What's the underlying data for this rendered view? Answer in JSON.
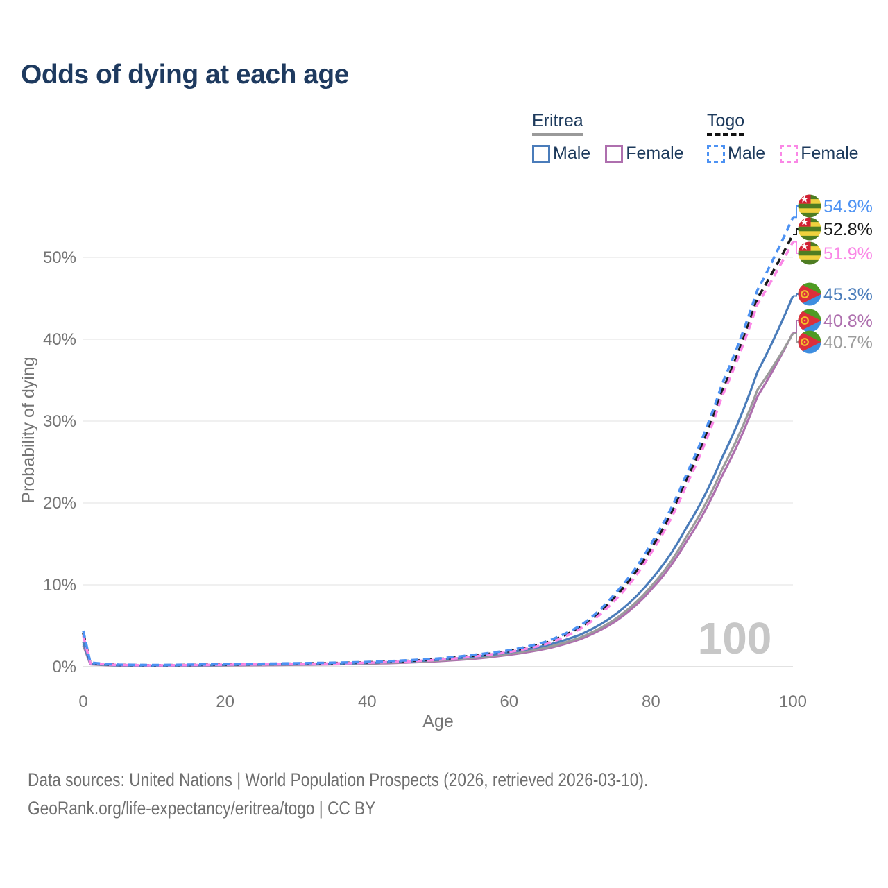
{
  "title": "Odds of dying at each age",
  "legend": {
    "groups": [
      {
        "name": "Eritrea",
        "line_style": "solid",
        "underline_color": "#9a9a9a",
        "items": [
          {
            "label": "Male",
            "color": "#4a7cba"
          },
          {
            "label": "Female",
            "color": "#ae6fae"
          }
        ]
      },
      {
        "name": "Togo",
        "line_style": "dashed",
        "underline_color": "#111111",
        "items": [
          {
            "label": "Male",
            "color": "#4d92f3"
          },
          {
            "label": "Female",
            "color": "#fa87e6"
          }
        ]
      }
    ]
  },
  "axes": {
    "x": {
      "title": "Age",
      "ticks": [
        "0",
        "20",
        "40",
        "60",
        "80",
        "100"
      ],
      "range": [
        0,
        100
      ]
    },
    "y": {
      "title": "Probability of dying",
      "ticks": [
        "0%",
        "10%",
        "20%",
        "30%",
        "40%",
        "50%"
      ],
      "range_pct": [
        0,
        57
      ],
      "grid": true
    }
  },
  "hover_age_label": "100",
  "end_labels": [
    {
      "text": "54.9%",
      "series": "togo_male",
      "flag": "togo",
      "color": "#4d92f3"
    },
    {
      "text": "52.8%",
      "series": "togo_both",
      "flag": "togo",
      "color": "#1a1a1a"
    },
    {
      "text": "51.9%",
      "series": "togo_female",
      "flag": "togo",
      "color": "#fa87e6"
    },
    {
      "text": "45.3%",
      "series": "eritrea_male",
      "flag": "eritrea",
      "color": "#4a7cba"
    },
    {
      "text": "40.8%",
      "series": "eritrea_female",
      "flag": "eritrea",
      "color": "#ae6fae"
    },
    {
      "text": "40.7%",
      "series": "eritrea_both",
      "flag": "eritrea",
      "color": "#9b9b9b"
    }
  ],
  "chart_data": {
    "type": "line",
    "title": "Odds of dying at each age",
    "xlabel": "Age",
    "ylabel": "Probability of dying",
    "unit": "%",
    "xlim": [
      0,
      100
    ],
    "ylim_pct": [
      0,
      57
    ],
    "legend_position": "top-right",
    "grid": "horizontal",
    "x": [
      0,
      1,
      5,
      10,
      15,
      20,
      25,
      30,
      35,
      40,
      45,
      50,
      55,
      60,
      65,
      70,
      75,
      80,
      85,
      90,
      95,
      100
    ],
    "series": [
      {
        "id": "togo_male",
        "name": "Togo Male",
        "country": "Togo",
        "sex": "Male",
        "style": "dashed",
        "color": "#4d92f3",
        "values": [
          4.4,
          0.5,
          0.25,
          0.2,
          0.25,
          0.32,
          0.36,
          0.42,
          0.48,
          0.58,
          0.75,
          1.0,
          1.45,
          2.0,
          3.0,
          5.0,
          9.0,
          15.0,
          23.5,
          34.5,
          46.0,
          54.9
        ],
        "end_value_pct": 54.9
      },
      {
        "id": "togo_both",
        "name": "Togo Both sexes",
        "country": "Togo",
        "sex": "Both",
        "style": "dashed",
        "color": "#1a1a1a",
        "values": [
          4.1,
          0.46,
          0.23,
          0.18,
          0.22,
          0.28,
          0.32,
          0.38,
          0.44,
          0.53,
          0.68,
          0.92,
          1.35,
          1.9,
          2.85,
          4.8,
          8.6,
          14.4,
          22.8,
          33.6,
          45.0,
          52.8
        ],
        "end_value_pct": 52.8
      },
      {
        "id": "togo_female",
        "name": "Togo Female",
        "country": "Togo",
        "sex": "Female",
        "style": "dashed",
        "color": "#fa87e6",
        "values": [
          3.8,
          0.42,
          0.21,
          0.17,
          0.2,
          0.25,
          0.28,
          0.33,
          0.39,
          0.48,
          0.62,
          0.84,
          1.25,
          1.8,
          2.7,
          4.6,
          8.2,
          13.9,
          22.2,
          33.0,
          44.3,
          51.9
        ],
        "end_value_pct": 51.9
      },
      {
        "id": "eritrea_male",
        "name": "Eritrea Male",
        "country": "Eritrea",
        "sex": "Male",
        "style": "solid",
        "color": "#4a7cba",
        "values": [
          3.0,
          0.36,
          0.16,
          0.13,
          0.16,
          0.21,
          0.26,
          0.31,
          0.36,
          0.46,
          0.6,
          0.84,
          1.2,
          1.75,
          2.55,
          3.9,
          6.4,
          10.6,
          17.0,
          25.5,
          36.0,
          45.3
        ],
        "end_value_pct": 45.3
      },
      {
        "id": "eritrea_both",
        "name": "Eritrea Both sexes",
        "country": "Eritrea",
        "sex": "Both",
        "style": "solid",
        "color": "#9b9b9b",
        "values": [
          2.8,
          0.33,
          0.15,
          0.12,
          0.14,
          0.18,
          0.22,
          0.27,
          0.32,
          0.41,
          0.54,
          0.75,
          1.08,
          1.58,
          2.3,
          3.55,
          5.85,
          9.8,
          15.9,
          24.1,
          33.8,
          40.7
        ],
        "end_value_pct": 40.7
      },
      {
        "id": "eritrea_female",
        "name": "Eritrea Female",
        "country": "Eritrea",
        "sex": "Female",
        "style": "solid",
        "color": "#ae6fae",
        "values": [
          2.6,
          0.3,
          0.14,
          0.11,
          0.13,
          0.16,
          0.19,
          0.23,
          0.28,
          0.36,
          0.48,
          0.67,
          0.97,
          1.45,
          2.15,
          3.35,
          5.55,
          9.4,
          15.3,
          23.3,
          33.0,
          40.8
        ],
        "end_value_pct": 40.8
      }
    ]
  },
  "colors": {
    "title_text": "#1e3a5f",
    "axis_text": "#757575",
    "gridline": "#e8e8e8",
    "zero_line": "#d9d9d9",
    "watermark": "#c7c7c7",
    "footer_text": "#6f6f6f"
  },
  "footer": {
    "line1": "Data sources: United Nations | World Population Prospects (2026, retrieved 2026-03-10).",
    "line2": "GeoRank.org/life-expectancy/eritrea/togo | CC BY"
  }
}
